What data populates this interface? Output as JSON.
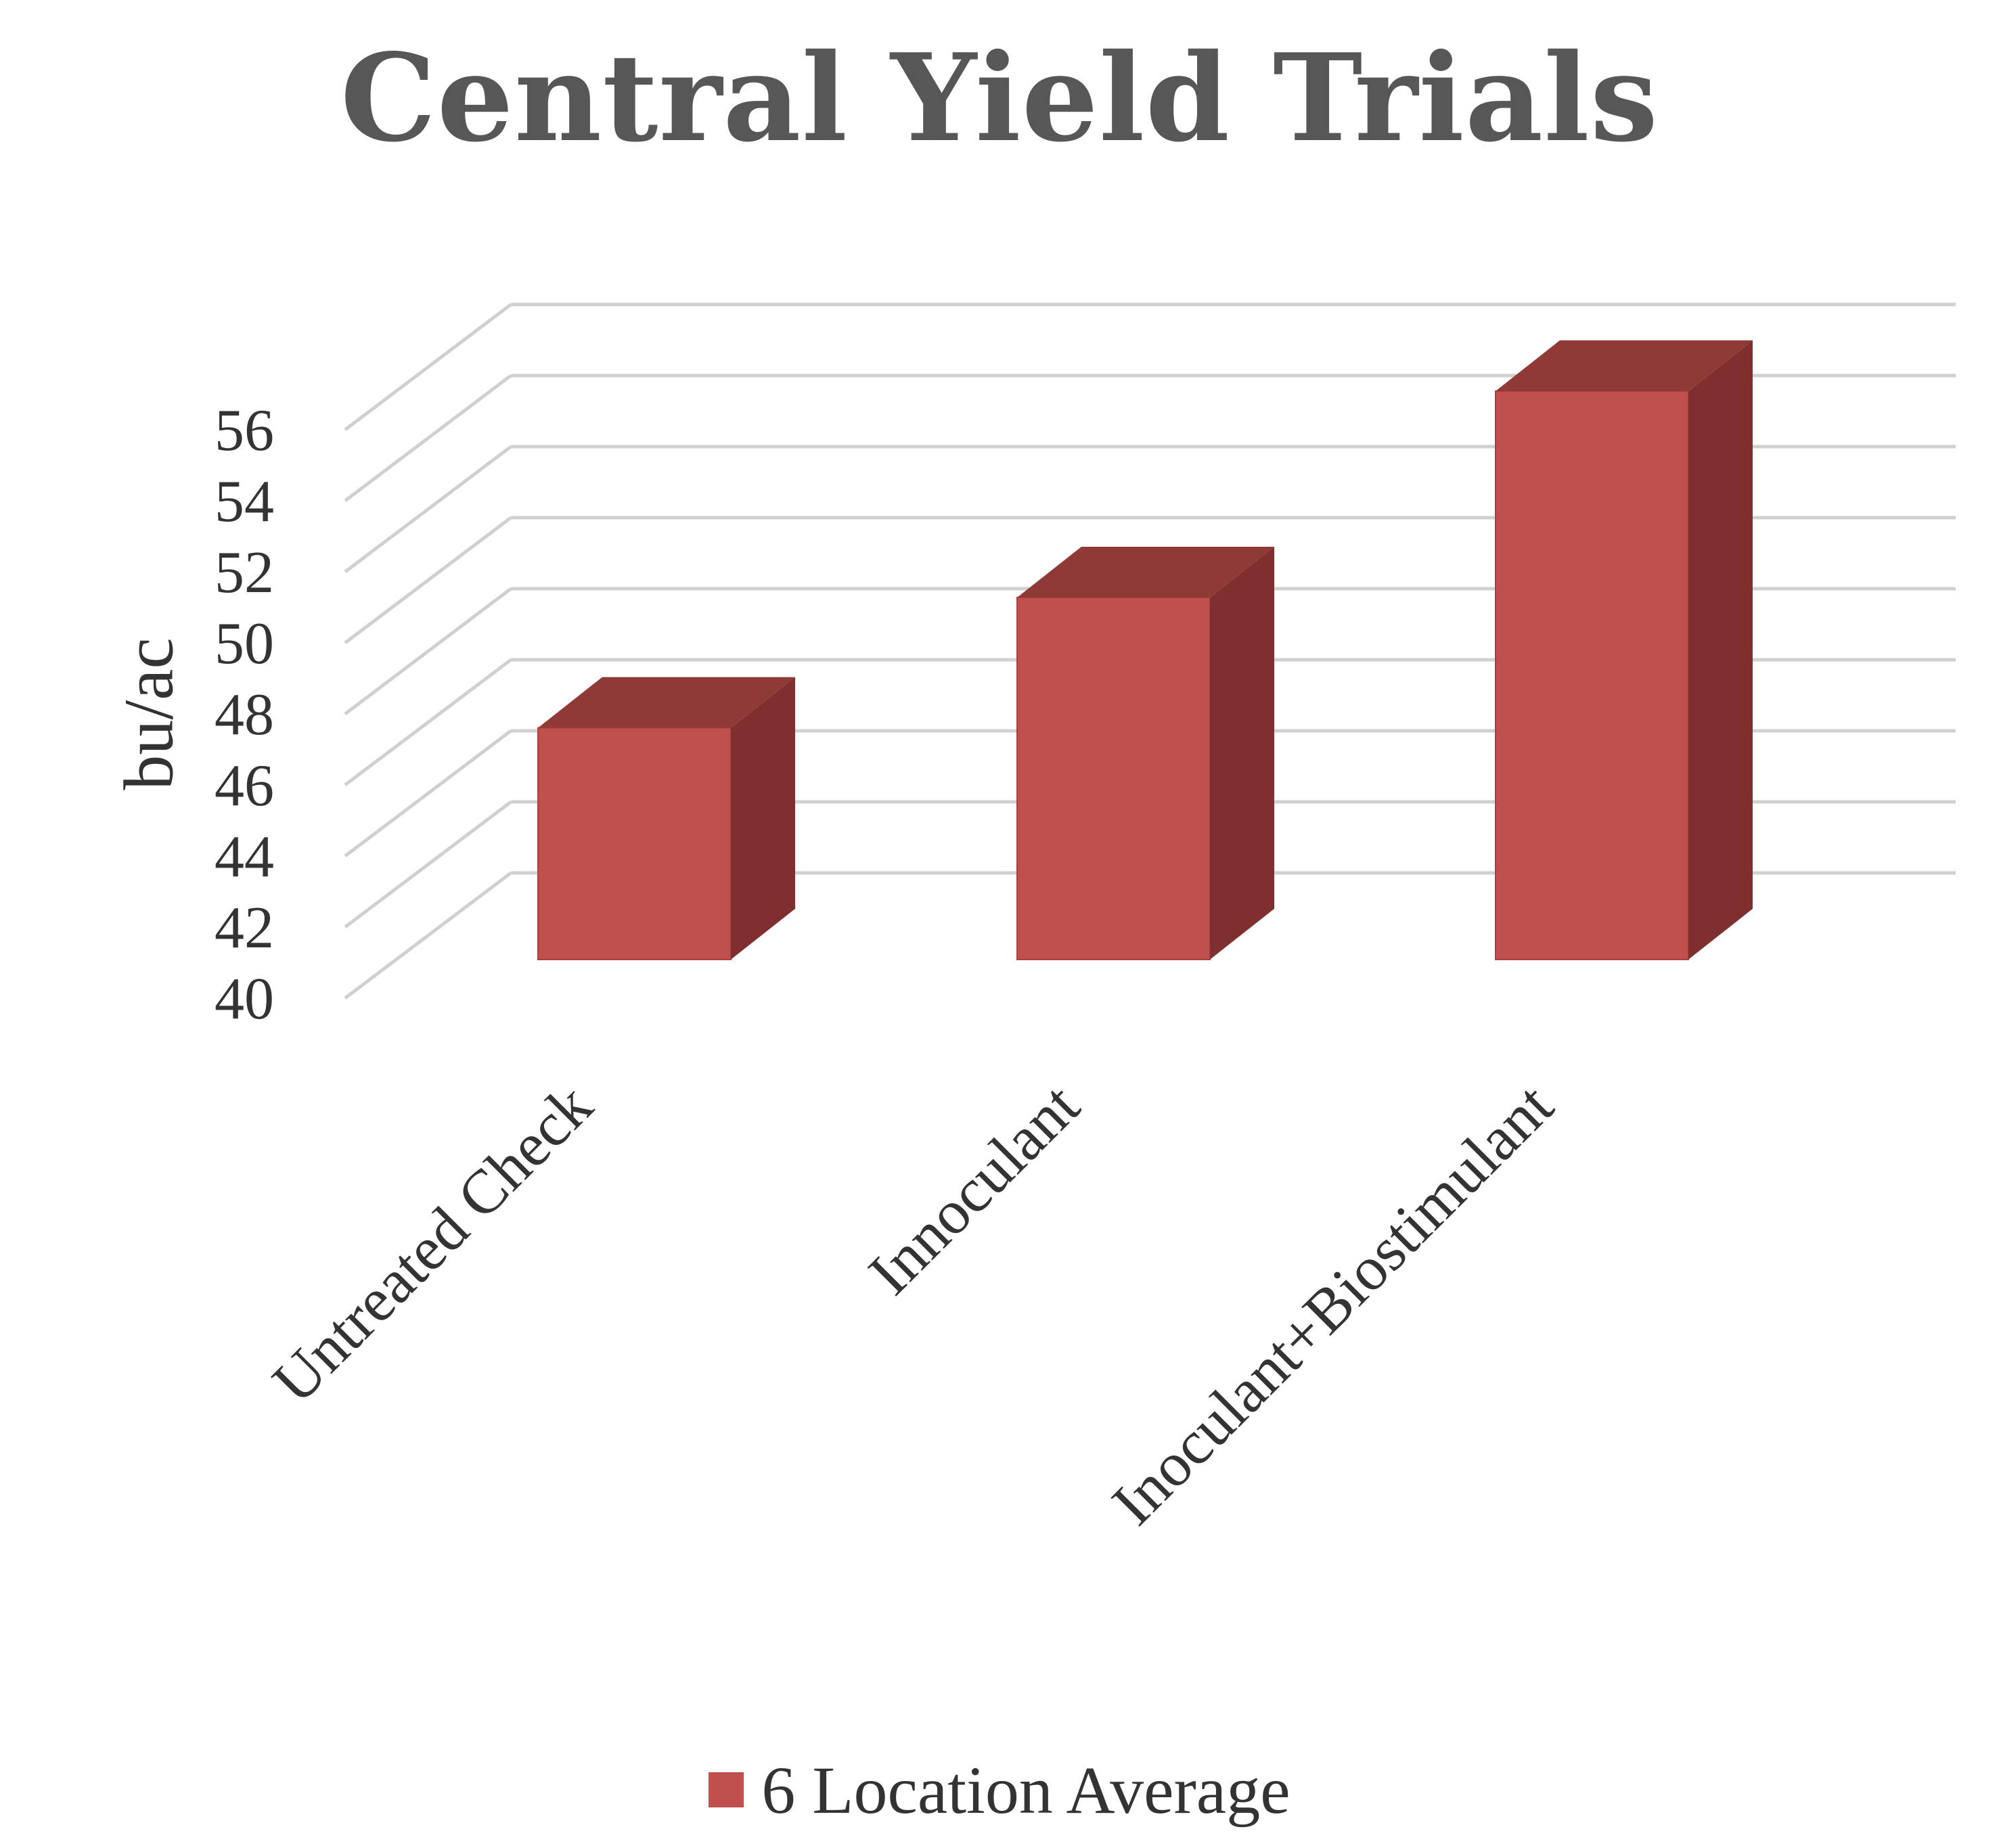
{
  "chart_data": {
    "type": "bar",
    "title": "Central Yield Trials",
    "ylabel": "bu/ac",
    "xlabel": "",
    "categories": [
      "Untreated Check",
      "Innoculant",
      "Inoculant+Biostimulant"
    ],
    "series": [
      {
        "name": "6 Location Average",
        "values": [
          46.4,
          50.0,
          55.7
        ],
        "color": "#c0504d"
      }
    ],
    "ylim": [
      40,
      56
    ],
    "yticks": [
      40,
      42,
      44,
      46,
      48,
      50,
      52,
      54,
      56
    ],
    "grid": true,
    "legend_position": "bottom",
    "three_d": true,
    "colors": {
      "bar_front": "#c0504d",
      "bar_side": "#7f2f2e",
      "bar_top": "#903a37",
      "grid": "#d0d0d0"
    }
  }
}
